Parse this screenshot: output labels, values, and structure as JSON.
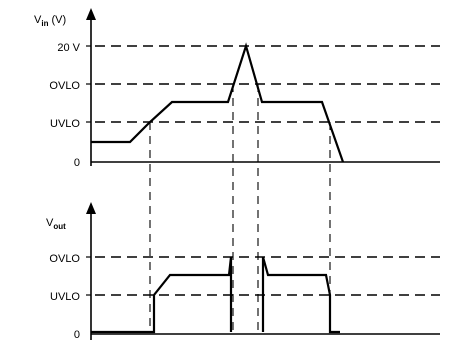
{
  "top_panel": {
    "axis_name": "V",
    "axis_sub": "in",
    "axis_unit": " (V)",
    "levels": [
      {
        "key": "v20",
        "label": "20 V"
      },
      {
        "key": "ovlo",
        "label": "OVLO"
      },
      {
        "key": "uvlo",
        "label": "UVLO"
      },
      {
        "key": "zero",
        "label": "0"
      }
    ]
  },
  "bottom_panel": {
    "axis_name": "V",
    "axis_sub": "out",
    "levels": [
      {
        "key": "ovlo",
        "label": "OVLO"
      },
      {
        "key": "uvlo",
        "label": "UVLO"
      },
      {
        "key": "zero",
        "label": "0"
      }
    ]
  }
}
